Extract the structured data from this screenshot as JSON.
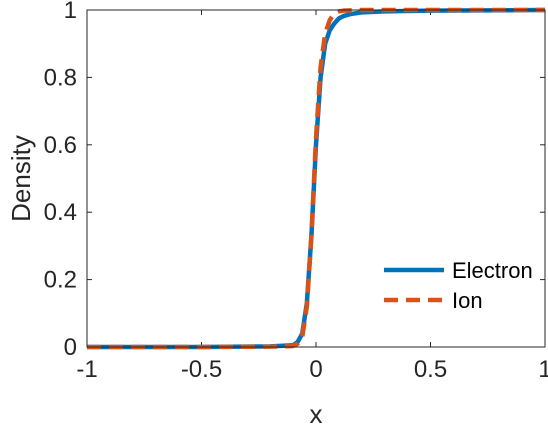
{
  "chart_data": {
    "type": "line",
    "title": "",
    "xlabel": "x",
    "ylabel": "Density",
    "xlim": [
      -1,
      1
    ],
    "ylim": [
      0,
      1
    ],
    "xticks": [
      -1,
      -0.5,
      0,
      0.5,
      1
    ],
    "xtick_labels": [
      "-1",
      "-0.5",
      "0",
      "0.5",
      "1"
    ],
    "yticks": [
      0,
      0.2,
      0.4,
      0.6,
      0.8,
      1
    ],
    "ytick_labels": [
      "0",
      "0.2",
      "0.4",
      "0.6",
      "0.8",
      "1"
    ],
    "grid": false,
    "legend_position": "bottom-right",
    "series": [
      {
        "name": "Electron",
        "color": "#0072BD",
        "style": "solid",
        "x": [
          -1,
          -0.5,
          -0.2,
          -0.1,
          -0.08,
          -0.06,
          -0.04,
          -0.02,
          0,
          0.02,
          0.04,
          0.06,
          0.08,
          0.1,
          0.12,
          0.15,
          0.2,
          0.3,
          0.5,
          1
        ],
        "y": [
          0,
          0,
          0.002,
          0.005,
          0.015,
          0.04,
          0.13,
          0.33,
          0.6,
          0.8,
          0.9,
          0.94,
          0.96,
          0.975,
          0.982,
          0.988,
          0.993,
          0.996,
          0.998,
          1
        ]
      },
      {
        "name": "Ion",
        "color": "#D95319",
        "style": "dashed",
        "x": [
          -1,
          -0.5,
          -0.2,
          -0.1,
          -0.08,
          -0.06,
          -0.04,
          -0.02,
          0,
          0.02,
          0.04,
          0.06,
          0.08,
          0.1,
          0.12,
          0.15,
          0.2,
          0.3,
          0.5,
          1
        ],
        "y": [
          0,
          0,
          0.001,
          0.003,
          0.01,
          0.03,
          0.12,
          0.33,
          0.62,
          0.83,
          0.93,
          0.97,
          0.99,
          0.996,
          0.998,
          0.999,
          1,
          1,
          1,
          1
        ]
      }
    ]
  }
}
